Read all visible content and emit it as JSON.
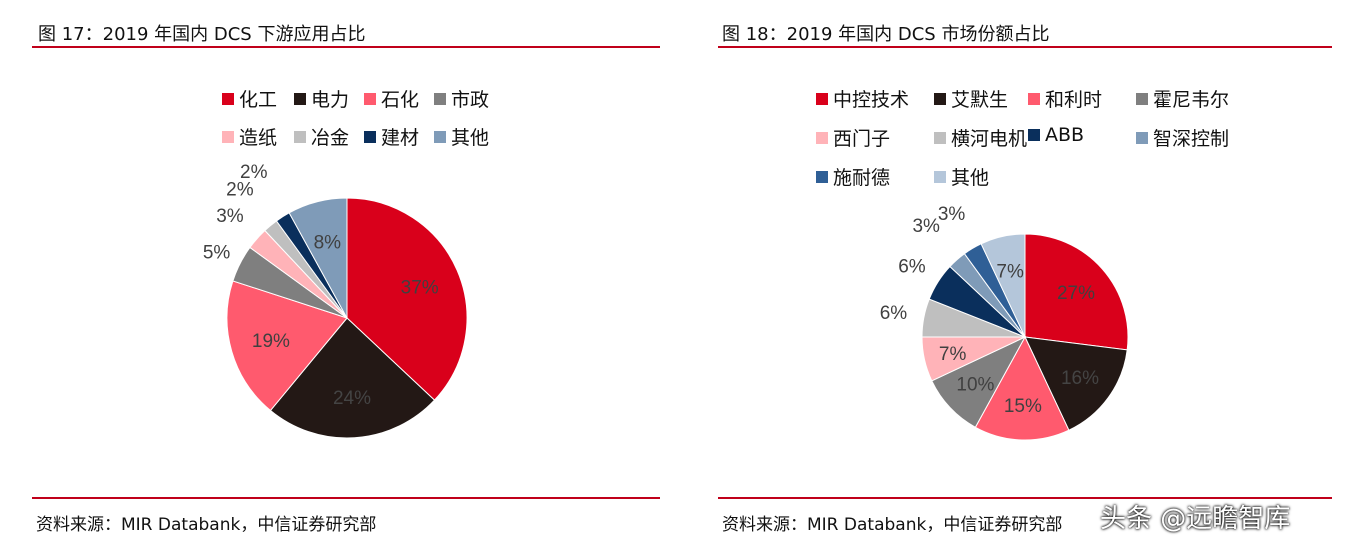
{
  "charts": [
    {
      "title": "图 17：2019 年国内 DCS 下游应用占比",
      "source": "资料来源：MIR Databank，中信证券研究部"
    },
    {
      "title": "图 18：2019 年国内 DCS 市场份额占比",
      "source": "资料来源：MIR Databank，中信证券研究部"
    }
  ],
  "watermark": "头条 @远瞻智库",
  "chart_data": [
    {
      "type": "pie",
      "legend_position": "top",
      "categories": [
        "化工",
        "电力",
        "石化",
        "市政",
        "造纸",
        "冶金",
        "建材",
        "其他"
      ],
      "values": [
        37,
        24,
        19,
        5,
        3,
        2,
        2,
        8
      ],
      "labels": [
        "37%",
        "24%",
        "19%",
        "5%",
        "3%",
        "2%",
        "2%",
        "8%"
      ],
      "colors": [
        "#d9001b",
        "#231815",
        "#ff5a6e",
        "#7f7f7f",
        "#ffb3b8",
        "#bfbfbf",
        "#0a2f5c",
        "#7f9bb8"
      ]
    },
    {
      "type": "pie",
      "legend_position": "top",
      "categories": [
        "中控技术",
        "艾默生",
        "和利时",
        "霍尼韦尔",
        "西门子",
        "横河电机",
        "ABB",
        "智深控制",
        "施耐德",
        "其他"
      ],
      "values": [
        27,
        16,
        15,
        10,
        7,
        6,
        6,
        3,
        3,
        7
      ],
      "labels": [
        "27%",
        "16%",
        "15%",
        "10%",
        "7%",
        "6%",
        "6%",
        "3%",
        "3%",
        "7%"
      ],
      "colors": [
        "#d9001b",
        "#231815",
        "#ff5a6e",
        "#7f7f7f",
        "#ffb3b8",
        "#bfbfbf",
        "#0a2f5c",
        "#7f9bb8",
        "#2f5f96",
        "#b4c6da"
      ]
    }
  ]
}
